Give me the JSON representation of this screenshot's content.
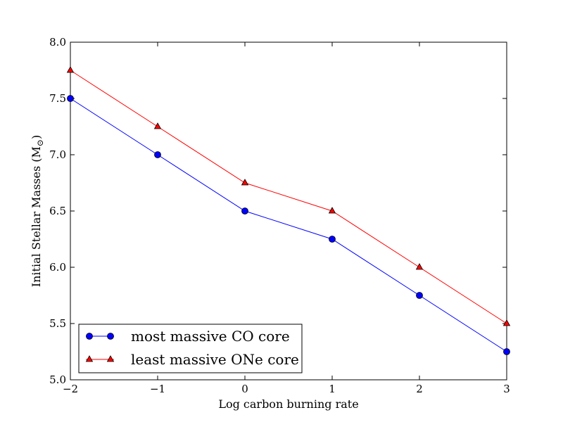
{
  "chart_data": {
    "type": "line",
    "title": "",
    "xlabel": "Log carbon burning rate",
    "ylabel": "Initial Stellar Masses (M",
    "ylabel_symbol": "⊙",
    "ylabel_close": ")",
    "xlim": [
      -2,
      3
    ],
    "ylim": [
      5.0,
      8.0
    ],
    "x": [
      -2,
      -1,
      0,
      1,
      2,
      3
    ],
    "x_tick_labels": [
      "−2",
      "−1",
      "0",
      "1",
      "2",
      "3"
    ],
    "y_ticks": [
      5.0,
      5.5,
      6.0,
      6.5,
      7.0,
      7.5,
      8.0
    ],
    "y_tick_labels": [
      "5.0",
      "5.5",
      "6.0",
      "6.5",
      "7.0",
      "7.5",
      "8.0"
    ],
    "grid": false,
    "legend_position": "bottom-left",
    "series": [
      {
        "name": "most massive CO core",
        "color": "#0000ff",
        "marker": "circle",
        "values": [
          7.5,
          7.0,
          6.5,
          6.25,
          5.75,
          5.25
        ]
      },
      {
        "name": "least massive ONe core",
        "color": "#ff0000",
        "marker": "triangle",
        "values": [
          7.75,
          7.25,
          6.75,
          6.5,
          6.0,
          5.5
        ]
      }
    ]
  }
}
